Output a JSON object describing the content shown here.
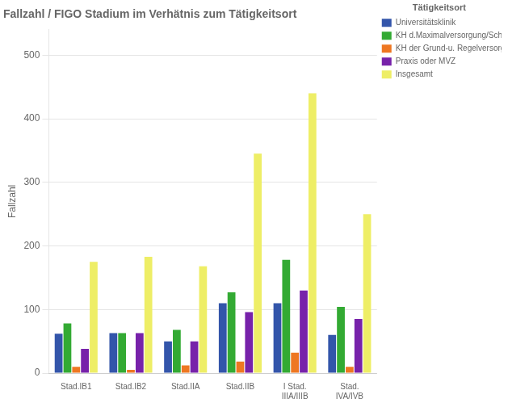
{
  "chart_data": {
    "type": "bar",
    "title": "Fallzahl / FIGO Stadium im Verhätnis zum Tätigkeitsort",
    "ylabel": "Fallzahl",
    "categories": [
      "Stad.IB1",
      "Stad.IB2",
      "Stad.IIA",
      "Stad.IIB",
      "I Stad.\nIIIA/IIIB",
      "Stad.\nIVA/IVB"
    ],
    "legend_title": "Tätigkeitsort",
    "series": [
      {
        "name": "Universitätsklinik",
        "color": "#3355aa",
        "values": [
          62,
          63,
          50,
          110,
          110,
          60
        ]
      },
      {
        "name": "KH d.Maximalversorgung/Schwerpunkt-KH",
        "color": "#33aa33",
        "values": [
          78,
          63,
          68,
          127,
          178,
          104
        ]
      },
      {
        "name": "KH der Grund-u. Regelversorgung",
        "color": "#ee7722",
        "values": [
          10,
          5,
          12,
          18,
          32,
          10
        ]
      },
      {
        "name": "Praxis oder MVZ",
        "color": "#7722aa",
        "values": [
          38,
          63,
          50,
          96,
          130,
          85
        ]
      },
      {
        "name": "Insgesamt",
        "color": "#eeee66",
        "values": [
          175,
          183,
          168,
          345,
          440,
          250
        ]
      }
    ],
    "ylim": [
      0,
      540
    ],
    "yticks": [
      0,
      100,
      200,
      300,
      400,
      500
    ],
    "grid": true,
    "legend": "right"
  }
}
